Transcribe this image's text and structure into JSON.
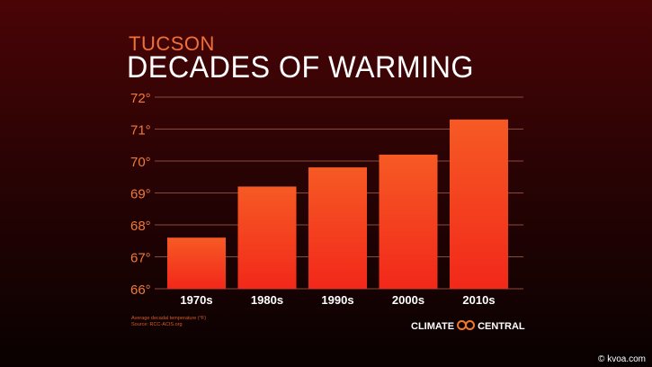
{
  "chart_data": {
    "type": "bar",
    "subtitle": "TUCSON",
    "title": "DECADES OF WARMING",
    "categories": [
      "1970s",
      "1980s",
      "1990s",
      "2000s",
      "2010s"
    ],
    "values": [
      67.6,
      69.2,
      69.8,
      70.2,
      71.3
    ],
    "ylim": [
      66,
      72
    ],
    "yticks": [
      "66°",
      "67°",
      "68°",
      "69°",
      "70°",
      "71°",
      "72°"
    ],
    "grid": true,
    "bar_color": "#f2281a",
    "bar_top_color": "#f65a24",
    "footnote": [
      "Average decadal temperature (°F)",
      "Source: RCC-ACIS.org"
    ]
  },
  "branding": {
    "logo_left": "CLIMATE",
    "logo_right": "CENTRAL",
    "watermark": "© kvoa.com"
  }
}
